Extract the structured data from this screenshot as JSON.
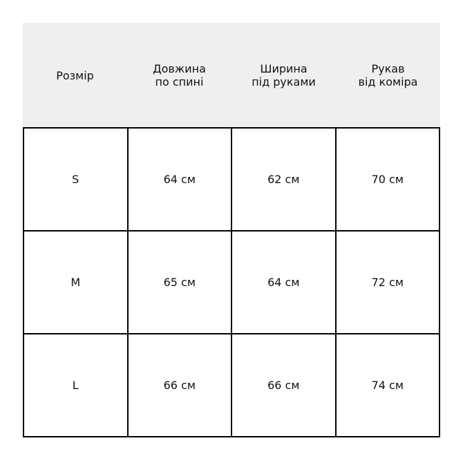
{
  "table": {
    "headers": [
      "Розмір",
      "Довжина\nпо спині",
      "Ширина\nпід руками",
      "Рукав\nвід коміра"
    ],
    "rows": [
      [
        "S",
        "64 см",
        "62 см",
        "70 см"
      ],
      [
        "M",
        "65 см",
        "64 см",
        "72 см"
      ],
      [
        "L",
        "66 см",
        "66 см",
        "74 см"
      ]
    ]
  },
  "colors": {
    "header_bg": "#efefef",
    "border": "#000000"
  }
}
